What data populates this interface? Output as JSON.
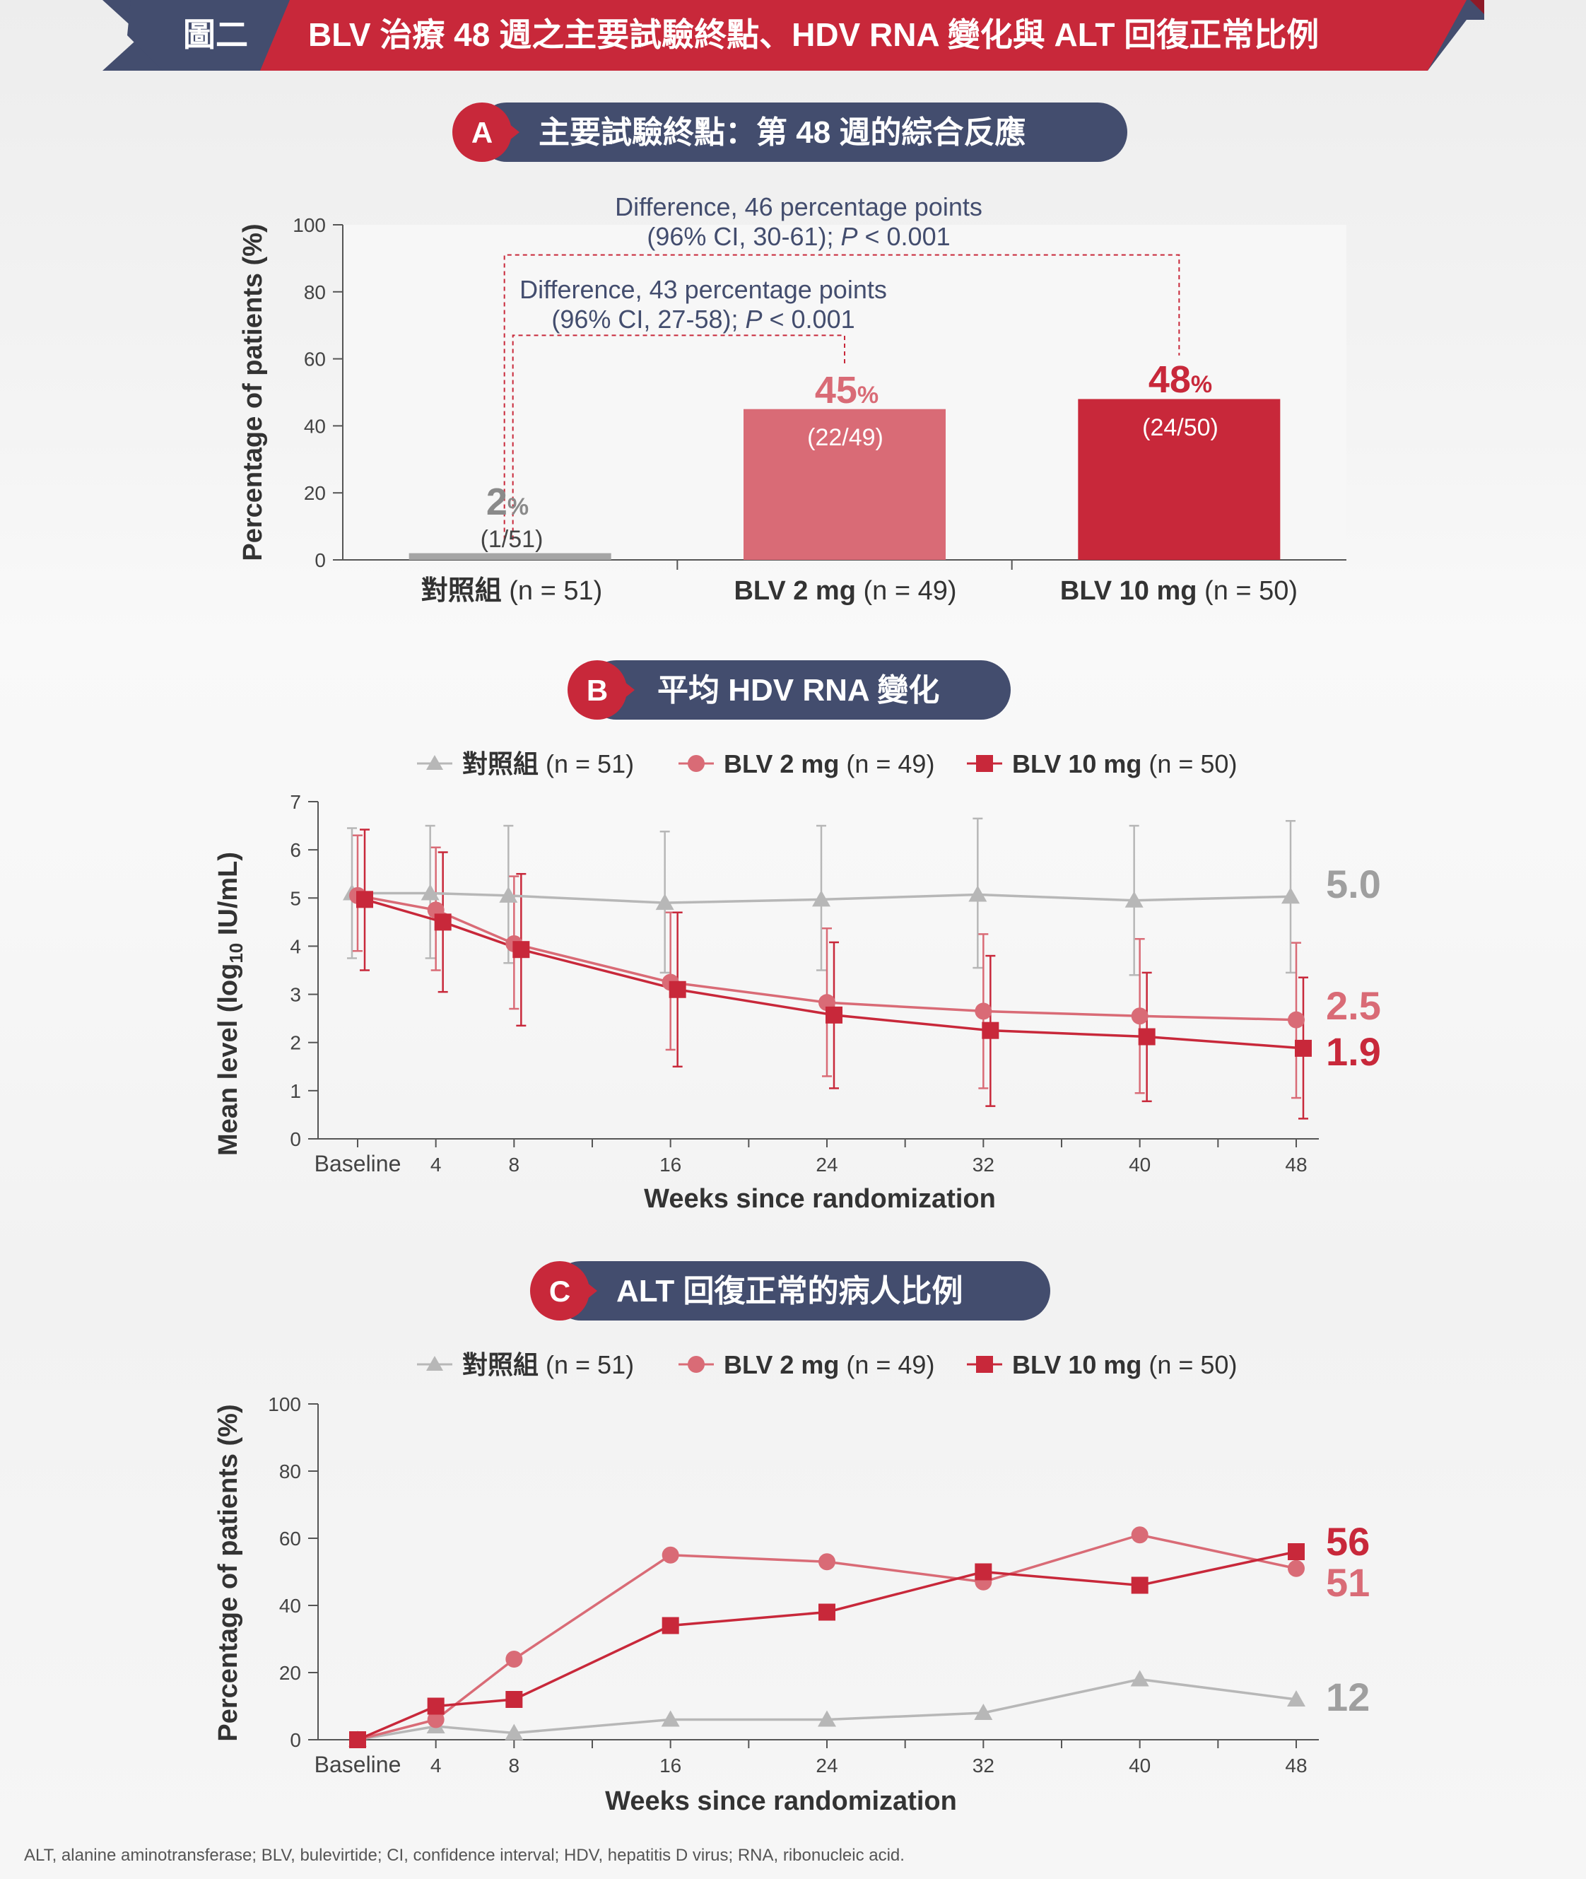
{
  "colors": {
    "navy": "#434d6e",
    "red": "#c8283a",
    "pink": "#d96b76",
    "gray": "#9f9f9f",
    "grayLine": "#b7b7b7",
    "text": "#333333"
  },
  "header": {
    "badge": "圖二",
    "title": "BLV 治療 48 週之主要試驗終點、HDV RNA 變化與 ALT 回復正常比例"
  },
  "panel_a": {
    "letter": "A",
    "title": "主要試驗終點：第 48 週的綜合反應"
  },
  "panel_b": {
    "letter": "B",
    "title": "平均 HDV RNA 變化"
  },
  "panel_c": {
    "letter": "C",
    "title": "ALT 回復正常的病人比例"
  },
  "legend": [
    {
      "bold": "對照組",
      "rest": " (n = 51)",
      "marker": "triangle",
      "color": "#b7b7b7"
    },
    {
      "bold": "BLV 2 mg",
      "rest": " (n = 49)",
      "marker": "circle",
      "color": "#d96b76"
    },
    {
      "bold": "BLV 10 mg",
      "rest": " (n = 50)",
      "marker": "square",
      "color": "#c8283a"
    }
  ],
  "chart_data": [
    {
      "type": "bar",
      "ylabel": "Percentage of patients (%)",
      "ylim": [
        0,
        100
      ],
      "yticks": [
        0,
        20,
        40,
        60,
        80,
        100
      ],
      "categories": [
        {
          "bold": "對照組",
          "rest": " (n = 51)"
        },
        {
          "bold": "BLV 2 mg",
          "rest": " (n = 49)"
        },
        {
          "bold": "BLV 10 mg",
          "rest": " (n = 50)"
        }
      ],
      "values": [
        2,
        45,
        48
      ],
      "value_labels": [
        "2",
        "45",
        "48"
      ],
      "percent_sign": "%",
      "counts": [
        "(1/51)",
        "(22/49)",
        "(24/50)"
      ],
      "bar_colors": [
        "#a5a5a5",
        "#d96b76",
        "#c8283a"
      ],
      "annotations": [
        {
          "line1": "Difference, 46 percentage points",
          "line2_plain": "(96% CI, 30-61); ",
          "line2_italic": "P",
          "line2_end": " < 0.001",
          "from": 0,
          "to": 2
        },
        {
          "line1": "Difference, 43 percentage points",
          "line2_plain": "(96% CI, 27-58); ",
          "line2_italic": "P",
          "line2_end": " < 0.001",
          "from": 0,
          "to": 1
        }
      ]
    },
    {
      "type": "line",
      "xlabel": "Weeks since randomization",
      "ylabel_main": "Mean level (log",
      "ylabel_sub": "10",
      "ylabel_end": " IU/mL)",
      "ylim": [
        0,
        7
      ],
      "yticks": [
        0,
        1,
        2,
        3,
        4,
        5,
        6,
        7
      ],
      "x": [
        0,
        4,
        8,
        16,
        24,
        32,
        40,
        48
      ],
      "x_labels": [
        "Baseline",
        "4",
        "8",
        "16",
        "24",
        "32",
        "40",
        "48"
      ],
      "error_bars": true,
      "series": [
        {
          "name": "對照組 (n = 51)",
          "values": [
            5.1,
            5.1,
            5.05,
            4.9,
            4.97,
            5.07,
            4.95,
            5.03
          ],
          "lower": [
            3.75,
            3.75,
            3.65,
            3.45,
            3.5,
            3.55,
            3.4,
            3.45
          ],
          "upper": [
            6.45,
            6.5,
            6.5,
            6.38,
            6.5,
            6.65,
            6.5,
            6.6
          ],
          "end_label": "5.0"
        },
        {
          "name": "BLV 2 mg (n = 49)",
          "values": [
            5.05,
            4.75,
            4.05,
            3.25,
            2.83,
            2.65,
            2.55,
            2.47
          ],
          "lower": [
            3.9,
            3.5,
            2.7,
            1.85,
            1.3,
            1.05,
            0.95,
            0.85
          ],
          "upper": [
            6.3,
            6.05,
            5.45,
            4.7,
            4.37,
            4.25,
            4.15,
            4.07
          ],
          "end_label": "2.5"
        },
        {
          "name": "BLV 10 mg (n = 50)",
          "values": [
            4.97,
            4.5,
            3.93,
            3.1,
            2.57,
            2.25,
            2.12,
            1.88
          ],
          "lower": [
            3.5,
            3.05,
            2.35,
            1.5,
            1.05,
            0.68,
            0.78,
            0.42
          ],
          "upper": [
            6.42,
            5.95,
            5.5,
            4.7,
            4.08,
            3.8,
            3.45,
            3.35
          ],
          "end_label": "1.9"
        }
      ]
    },
    {
      "type": "line",
      "xlabel": "Weeks since randomization",
      "ylabel": "Percentage of patients (%)",
      "ylim": [
        0,
        100
      ],
      "yticks": [
        0,
        20,
        40,
        60,
        80,
        100
      ],
      "x": [
        0,
        4,
        8,
        16,
        24,
        32,
        40,
        48
      ],
      "x_labels": [
        "Baseline",
        "4",
        "8",
        "16",
        "24",
        "32",
        "40",
        "48"
      ],
      "series": [
        {
          "name": "對照組 (n = 51)",
          "values": [
            0,
            4,
            2,
            6,
            6,
            8,
            18,
            12
          ],
          "end_label": "12"
        },
        {
          "name": "BLV 2 mg (n = 49)",
          "values": [
            0,
            6,
            24,
            55,
            53,
            47,
            61,
            51
          ],
          "end_label": "51"
        },
        {
          "name": "BLV 10 mg (n = 50)",
          "values": [
            0,
            10,
            12,
            34,
            38,
            50,
            46,
            56
          ],
          "end_label": "56"
        }
      ]
    }
  ],
  "footnote": "ALT, alanine aminotransferase; BLV, bulevirtide; CI, confidence interval; HDV, hepatitis D virus; RNA, ribonucleic acid."
}
